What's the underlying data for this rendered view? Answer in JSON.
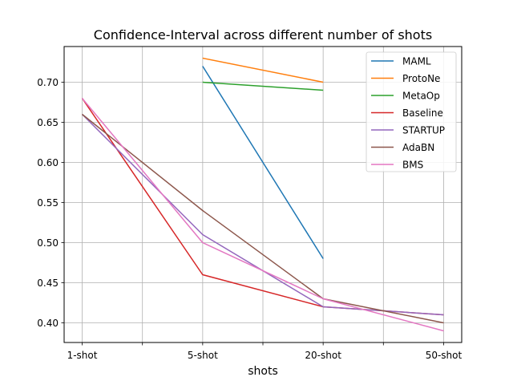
{
  "chart_data": {
    "type": "line",
    "title": "Confidence-Interval across different number of shots",
    "xlabel": "shots",
    "ylabel": "",
    "x_ticks": [
      {
        "pos": 0,
        "label": "1-shot"
      },
      {
        "pos": 0.5,
        "label": ""
      },
      {
        "pos": 1,
        "label": "5-shot"
      },
      {
        "pos": 1.5,
        "label": ""
      },
      {
        "pos": 2,
        "label": "20-shot"
      },
      {
        "pos": 2.5,
        "label": ""
      },
      {
        "pos": 3,
        "label": "50-shot"
      }
    ],
    "categories": [
      "1-shot",
      "5-shot",
      "20-shot",
      "50-shot"
    ],
    "xlim": [
      -0.15,
      3.15
    ],
    "ylim": [
      0.3755,
      0.7445
    ],
    "y_ticks": [
      0.4,
      0.45,
      0.5,
      0.55,
      0.6,
      0.65,
      0.7
    ],
    "grid": true,
    "legend_position": "top-right",
    "series": [
      {
        "name": "MAML",
        "color": "#1f77b4",
        "values": [
          null,
          0.72,
          0.48,
          null
        ]
      },
      {
        "name": "ProtoNe",
        "color": "#ff7f0e",
        "values": [
          null,
          0.73,
          0.7,
          null
        ]
      },
      {
        "name": "MetaOp",
        "color": "#2ca02c",
        "values": [
          null,
          0.7,
          0.69,
          null
        ]
      },
      {
        "name": "Baseline",
        "color": "#d62728",
        "values": [
          0.68,
          0.46,
          0.42,
          0.41
        ]
      },
      {
        "name": "STARTUP",
        "color": "#9467bd",
        "values": [
          0.66,
          0.51,
          0.42,
          0.41
        ]
      },
      {
        "name": "AdaBN",
        "color": "#8c564b",
        "values": [
          0.66,
          0.54,
          0.43,
          0.4
        ]
      },
      {
        "name": "BMS",
        "color": "#e377c2",
        "values": [
          0.68,
          0.5,
          0.43,
          0.39
        ]
      }
    ]
  }
}
